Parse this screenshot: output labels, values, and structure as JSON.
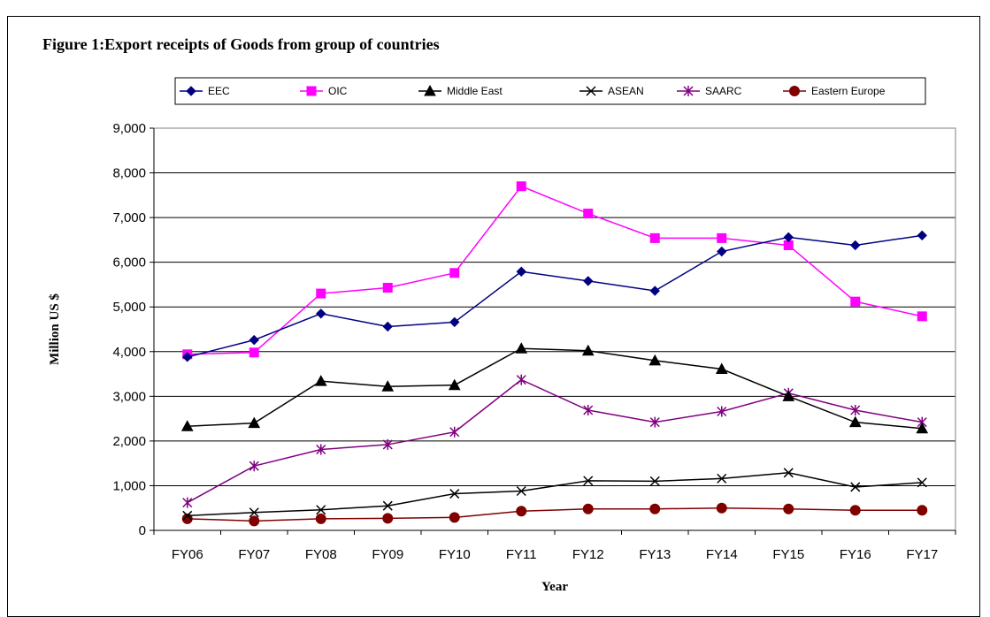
{
  "chart_data": {
    "type": "line",
    "title": "Figure 1:Export receipts of Goods from group of  countries",
    "xlabel": "Year",
    "ylabel": "Million US $",
    "categories": [
      "FY06",
      "FY07",
      "FY08",
      "FY09",
      "FY10",
      "FY11",
      "FY12",
      "FY13",
      "FY14",
      "FY15",
      "FY16",
      "FY17"
    ],
    "ylim": [
      0,
      9000
    ],
    "yticks": [
      "0",
      "1,000",
      "2,000",
      "3,000",
      "4,000",
      "5,000",
      "6,000",
      "7,000",
      "8,000",
      "9,000"
    ],
    "grid": true,
    "legend_position": "top",
    "series": [
      {
        "name": "EEC",
        "color": "#000080",
        "marker": "diamond",
        "values": [
          3880,
          4260,
          4850,
          4560,
          4660,
          5790,
          5580,
          5360,
          6240,
          6560,
          6380,
          6600
        ]
      },
      {
        "name": "OIC",
        "color": "#FF00FF",
        "marker": "square",
        "values": [
          3940,
          3980,
          5300,
          5430,
          5760,
          7700,
          7090,
          6540,
          6540,
          6380,
          5120,
          4790
        ]
      },
      {
        "name": "Middle East",
        "color": "#000000",
        "marker": "triangle",
        "values": [
          2330,
          2400,
          3340,
          3220,
          3250,
          4070,
          4020,
          3800,
          3610,
          3000,
          2420,
          2280
        ]
      },
      {
        "name": "ASEAN",
        "color": "#000000",
        "marker": "x",
        "values": [
          330,
          400,
          460,
          550,
          820,
          880,
          1110,
          1100,
          1160,
          1290,
          970,
          1070
        ]
      },
      {
        "name": "SAARC",
        "color": "#800080",
        "marker": "star",
        "values": [
          620,
          1440,
          1810,
          1920,
          2200,
          3370,
          2690,
          2420,
          2660,
          3070,
          2690,
          2420
        ]
      },
      {
        "name": "Eastern Europe",
        "color": "#800000",
        "marker": "circle",
        "values": [
          260,
          210,
          260,
          270,
          290,
          430,
          480,
          480,
          500,
          480,
          450,
          450
        ]
      }
    ]
  }
}
